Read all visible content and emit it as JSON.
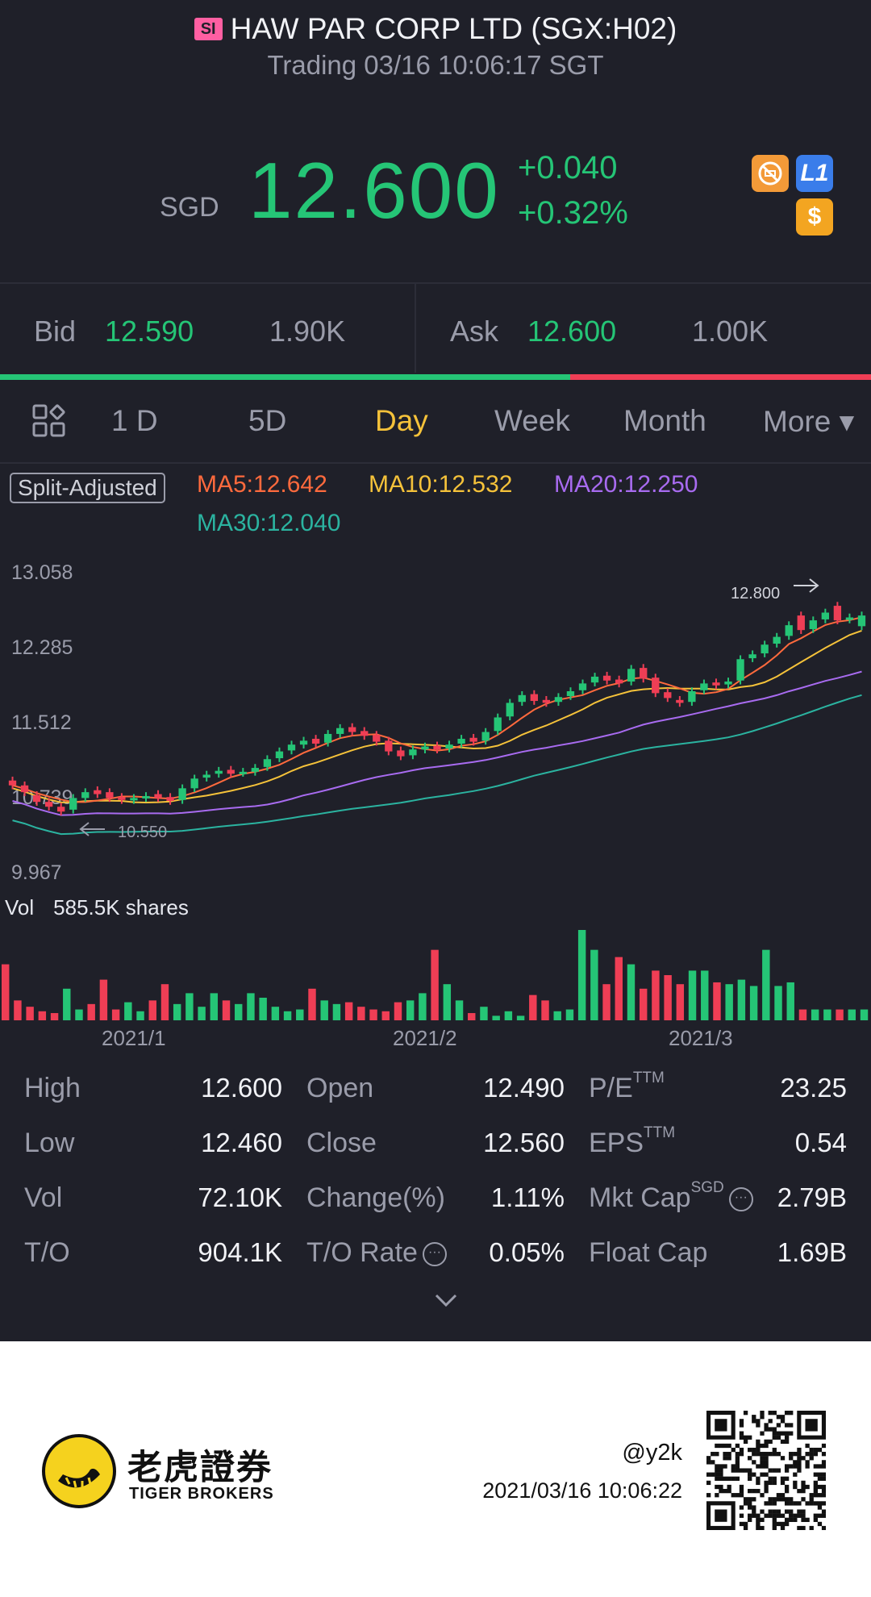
{
  "header": {
    "market_badge": "SI",
    "title": "HAW PAR CORP LTD (SGX:H02)",
    "status": "Trading 03/16 10:06:17 SGT"
  },
  "quote": {
    "currency": "SGD",
    "price": "12.600",
    "change": "+0.040",
    "change_pct": "+0.32%",
    "color_up": "#25c576",
    "icons": [
      "no-short-icon",
      "level1-icon",
      "dollar-icon"
    ],
    "icon_l1_text": "L1",
    "icon_dollar_text": "$"
  },
  "bidask": {
    "bid_label": "Bid",
    "bid_price": "12.590",
    "bid_qty": "1.90K",
    "ask_label": "Ask",
    "ask_price": "12.600",
    "ask_qty": "1.00K",
    "bid_ratio": 0.655
  },
  "tabs": [
    "1 D",
    "5D",
    "Day",
    "Week",
    "Month",
    "More ▾"
  ],
  "active_tab": "Day",
  "ma": {
    "split_adjusted": "Split-Adjusted",
    "ma5": "MA5:12.642",
    "ma10": "MA10:12.532",
    "ma20": "MA20:12.250",
    "ma30": "MA30:12.040",
    "colors": {
      "ma5": "#ff6a3d",
      "ma10": "#f5c23a",
      "ma20": "#a86bf0",
      "ma30": "#2bb3a0"
    }
  },
  "chart_data": {
    "type": "candlestick",
    "y_ticks": [
      "13.058",
      "12.285",
      "11.512",
      "10.739",
      "9.967"
    ],
    "ylim": [
      9.967,
      13.058
    ],
    "x_ticks": [
      "2021/1",
      "2021/2",
      "2021/3"
    ],
    "high_annotation": "12.800",
    "low_annotation": "10.550",
    "volume_label": "Vol",
    "volume_value": "585.5K shares",
    "up_color": "#25c576",
    "down_color": "#ef3e55",
    "closes": [
      10.85,
      10.78,
      10.68,
      10.63,
      10.58,
      10.72,
      10.78,
      10.76,
      10.72,
      10.7,
      10.72,
      10.74,
      10.72,
      10.69,
      10.82,
      10.92,
      10.96,
      11.0,
      10.97,
      10.99,
      11.03,
      11.12,
      11.2,
      11.27,
      11.31,
      11.28,
      11.38,
      11.44,
      11.4,
      11.36,
      11.3,
      11.2,
      11.15,
      11.22,
      11.25,
      11.22,
      11.27,
      11.33,
      11.3,
      11.4,
      11.55,
      11.7,
      11.78,
      11.72,
      11.7,
      11.76,
      11.82,
      11.9,
      11.97,
      11.93,
      11.9,
      12.05,
      11.95,
      11.8,
      11.75,
      11.7,
      11.82,
      11.9,
      11.88,
      11.92,
      12.15,
      12.2,
      12.3,
      12.38,
      12.5,
      12.45,
      12.55,
      12.63,
      12.55,
      12.58,
      12.6
    ],
    "opens": [
      10.9,
      10.85,
      10.75,
      10.68,
      10.63,
      10.6,
      10.72,
      10.8,
      10.78,
      10.73,
      10.7,
      10.72,
      10.76,
      10.73,
      10.7,
      10.82,
      10.93,
      10.97,
      11.01,
      10.98,
      10.99,
      11.04,
      11.13,
      11.21,
      11.27,
      11.33,
      11.29,
      11.38,
      11.45,
      11.41,
      11.37,
      11.31,
      11.21,
      11.16,
      11.22,
      11.26,
      11.23,
      11.28,
      11.34,
      11.31,
      11.41,
      11.56,
      11.71,
      11.79,
      11.73,
      11.71,
      11.77,
      11.83,
      11.91,
      11.98,
      11.94,
      11.92,
      12.06,
      11.96,
      11.81,
      11.73,
      11.71,
      11.83,
      11.91,
      11.89,
      11.93,
      12.16,
      12.21,
      12.31,
      12.39,
      12.6,
      12.46,
      12.56,
      12.7,
      12.56,
      12.49
    ],
    "volumes": [
      0.62,
      0.22,
      0.15,
      0.1,
      0.08,
      0.35,
      0.12,
      0.18,
      0.45,
      0.12,
      0.2,
      0.1,
      0.22,
      0.4,
      0.18,
      0.3,
      0.15,
      0.3,
      0.22,
      0.18,
      0.3,
      0.25,
      0.15,
      0.1,
      0.12,
      0.35,
      0.22,
      0.18,
      0.2,
      0.15,
      0.12,
      0.1,
      0.2,
      0.22,
      0.3,
      0.78,
      0.4,
      0.22,
      0.08,
      0.15,
      0.05,
      0.1,
      0.05,
      0.28,
      0.22,
      0.1,
      0.12,
      1.0,
      0.78,
      0.4,
      0.7,
      0.62,
      0.35,
      0.55,
      0.5,
      0.4,
      0.55,
      0.55,
      0.42,
      0.4,
      0.45,
      0.38,
      0.78,
      0.38,
      0.42,
      0.12,
      0.12,
      0.12,
      0.12,
      0.12,
      0.12
    ]
  },
  "stats": {
    "high_label": "High",
    "high": "12.600",
    "low_label": "Low",
    "low": "12.460",
    "vol_label": "Vol",
    "vol": "72.10K",
    "to_label": "T/O",
    "to": "904.1K",
    "open_label": "Open",
    "open": "12.490",
    "close_label": "Close",
    "close": "12.560",
    "change_label": "Change(%)",
    "change": "1.11%",
    "torate_label": "T/O Rate",
    "torate": "0.05%",
    "pe_label": "P/E",
    "pe_sup": "TTM",
    "pe": "23.25",
    "eps_label": "EPS",
    "eps_sup": "TTM",
    "eps": "0.54",
    "mktcap_label": "Mkt Cap",
    "mktcap_sup": "SGD",
    "mktcap": "2.79B",
    "floatcap_label": "Float Cap",
    "floatcap": "1.69B"
  },
  "footer": {
    "brand_cn": "老虎證券",
    "brand_en": "TIGER BROKERS",
    "user": "@y2k",
    "timestamp": "2021/03/16 10:06:22"
  }
}
